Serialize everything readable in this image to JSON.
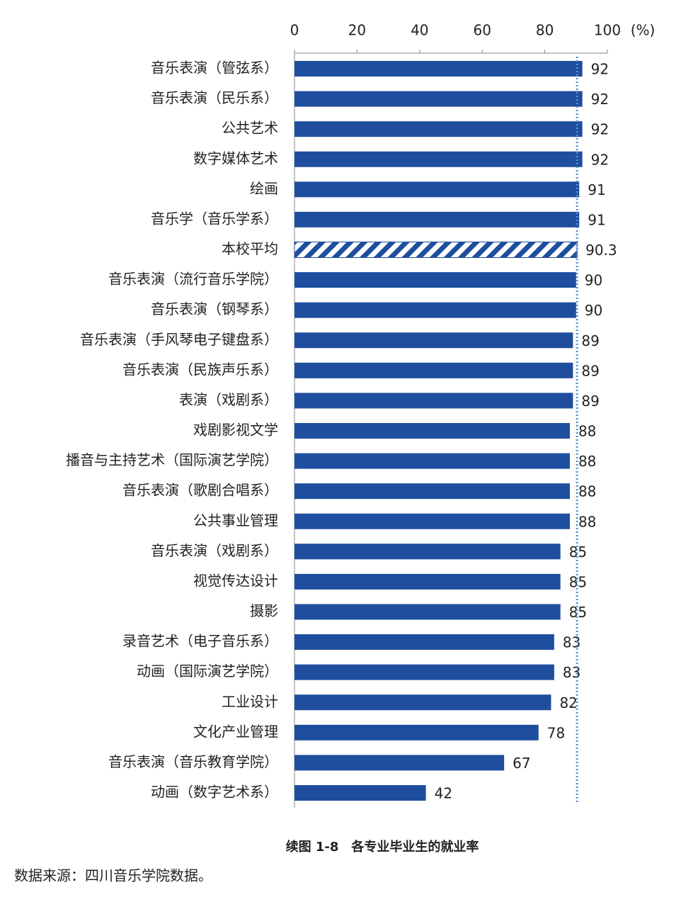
{
  "chart_data": {
    "type": "hbar",
    "title": "续图 1-8　各专业毕业生的就业率",
    "source": "数据来源：四川音乐学院数据。",
    "x_unit": "(%)",
    "categories": [
      "音乐表演（管弦系）",
      "音乐表演（民乐系）",
      "公共艺术",
      "数字媒体艺术",
      "绘画",
      "音乐学（音乐学系）",
      "本校平均",
      "音乐表演（流行音乐学院）",
      "音乐表演（钢琴系）",
      "音乐表演（手风琴电子键盘系）",
      "音乐表演（民族声乐系）",
      "表演（戏剧系）",
      "戏剧影视文学",
      "播音与主持艺术（国际演艺学院）",
      "音乐表演（歌剧合唱系）",
      "公共事业管理",
      "音乐表演（戏剧系）",
      "视觉传达设计",
      "摄影",
      "录音艺术（电子音乐系）",
      "动画（国际演艺学院）",
      "工业设计",
      "文化产业管理",
      "音乐表演（音乐教育学院）",
      "动画（数字艺术系）"
    ],
    "values": [
      92,
      92,
      92,
      92,
      91,
      91,
      90.3,
      90,
      90,
      89,
      89,
      89,
      88,
      88,
      88,
      88,
      85,
      85,
      85,
      83,
      83,
      82,
      78,
      67,
      42
    ],
    "bar_styles": [
      "solid",
      "solid",
      "solid",
      "solid",
      "solid",
      "solid",
      "hatched",
      "solid",
      "solid",
      "solid",
      "solid",
      "solid",
      "solid",
      "solid",
      "solid",
      "solid",
      "solid",
      "solid",
      "solid",
      "solid",
      "solid",
      "solid",
      "solid",
      "solid",
      "solid"
    ],
    "color": "#1f4e9e",
    "reference_line": 90.3,
    "xlim": [
      0,
      100
    ],
    "xticks": [
      0,
      20,
      40,
      60,
      80,
      100
    ]
  }
}
